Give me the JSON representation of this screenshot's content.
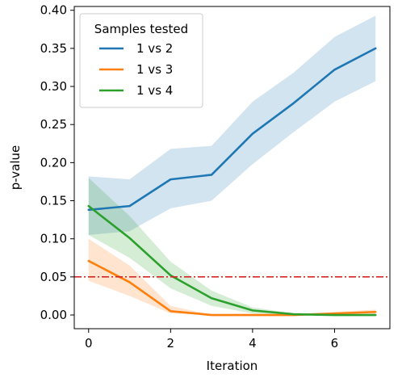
{
  "chart_data": {
    "type": "line",
    "xlabel": "Iteration",
    "ylabel": "p-value",
    "xlim": [
      -0.35,
      7.35
    ],
    "ylim": [
      -0.018,
      0.405
    ],
    "xticks": [
      0,
      2,
      4,
      6
    ],
    "xtick_labels": [
      "0",
      "2",
      "4",
      "6"
    ],
    "yticks": [
      0.0,
      0.05,
      0.1,
      0.15,
      0.2,
      0.25,
      0.3,
      0.35,
      0.4
    ],
    "ytick_labels": [
      "0.00",
      "0.05",
      "0.10",
      "0.15",
      "0.20",
      "0.25",
      "0.30",
      "0.35",
      "0.40"
    ],
    "grid": false,
    "legend": {
      "title": "Samples tested",
      "placement": "top-left"
    },
    "x": [
      0,
      1,
      2,
      3,
      4,
      5,
      6,
      7
    ],
    "series": [
      {
        "name": "1 vs 2",
        "color": "#1f77b4",
        "values": [
          0.138,
          0.143,
          0.178,
          0.184,
          0.238,
          0.278,
          0.322,
          0.35
        ],
        "lower": [
          0.105,
          0.11,
          0.14,
          0.15,
          0.198,
          0.24,
          0.28,
          0.307
        ],
        "upper": [
          0.182,
          0.178,
          0.218,
          0.222,
          0.28,
          0.318,
          0.365,
          0.393
        ]
      },
      {
        "name": "1 vs 3",
        "color": "#ff7f0e",
        "values": [
          0.071,
          0.043,
          0.005,
          0.0,
          0.0,
          0.0,
          0.002,
          0.004
        ],
        "lower": [
          0.045,
          0.025,
          0.002,
          0.0,
          0.0,
          0.0,
          0.0,
          0.001
        ],
        "upper": [
          0.1,
          0.065,
          0.012,
          0.0,
          0.0,
          0.0,
          0.004,
          0.007
        ]
      },
      {
        "name": "1 vs 4",
        "color": "#2ca02c",
        "values": [
          0.143,
          0.101,
          0.052,
          0.022,
          0.006,
          0.001,
          0.0,
          0.0
        ],
        "lower": [
          0.105,
          0.075,
          0.035,
          0.012,
          0.002,
          0.0,
          0.0,
          0.0
        ],
        "upper": [
          0.18,
          0.13,
          0.07,
          0.032,
          0.01,
          0.002,
          0.001,
          0.001
        ]
      }
    ],
    "reference_line": {
      "y": 0.05,
      "color": "#d62728",
      "style": "dash-dot"
    }
  }
}
